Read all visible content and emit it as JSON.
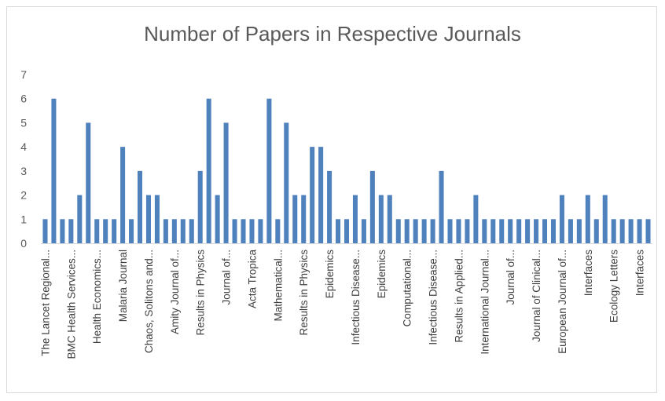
{
  "chart_data": {
    "type": "bar",
    "title": "Number of Papers in Respective Journals",
    "xlabel": "",
    "ylabel": "",
    "ylim": [
      0,
      7
    ],
    "yticks": [
      0,
      1,
      2,
      3,
      4,
      5,
      6,
      7
    ],
    "grid": false,
    "legend": "none",
    "bar_color": "#4f81bd",
    "values": [
      1,
      6,
      1,
      1,
      2,
      5,
      1,
      1,
      1,
      4,
      1,
      3,
      2,
      2,
      1,
      1,
      1,
      1,
      3,
      6,
      2,
      5,
      1,
      1,
      1,
      1,
      6,
      1,
      5,
      2,
      2,
      4,
      4,
      3,
      1,
      1,
      2,
      1,
      3,
      2,
      2,
      1,
      1,
      1,
      1,
      1,
      3,
      1,
      1,
      1,
      2,
      1,
      1,
      1,
      1,
      1,
      1,
      1,
      1,
      1,
      2,
      1,
      1,
      2,
      1,
      2,
      1,
      1,
      1,
      1,
      1
    ],
    "visible_labels": [
      {
        "index": 0,
        "text": "The Lancet Regional..."
      },
      {
        "index": 3,
        "text": "BMC Health Services..."
      },
      {
        "index": 6,
        "text": "Health Economics..."
      },
      {
        "index": 9,
        "text": "Malaria Journal"
      },
      {
        "index": 12,
        "text": "Chaos, Solitons and..."
      },
      {
        "index": 15,
        "text": "Amity Journal of..."
      },
      {
        "index": 18,
        "text": "Results in Physics"
      },
      {
        "index": 21,
        "text": "Journal of..."
      },
      {
        "index": 24,
        "text": "Acta Tropica"
      },
      {
        "index": 27,
        "text": "Mathematical..."
      },
      {
        "index": 30,
        "text": "Results in Physics"
      },
      {
        "index": 33,
        "text": "Epidemics"
      },
      {
        "index": 36,
        "text": "Infectious Disease..."
      },
      {
        "index": 39,
        "text": "Epidemics"
      },
      {
        "index": 42,
        "text": "Computational..."
      },
      {
        "index": 45,
        "text": "Infectious Disease..."
      },
      {
        "index": 48,
        "text": "Results in Applied..."
      },
      {
        "index": 51,
        "text": "International Journal..."
      },
      {
        "index": 54,
        "text": "Journal of..."
      },
      {
        "index": 57,
        "text": "Journal of Clinical..."
      },
      {
        "index": 60,
        "text": "European Journal of..."
      },
      {
        "index": 63,
        "text": "Interfaces"
      },
      {
        "index": 66,
        "text": "Ecology Letters"
      },
      {
        "index": 69,
        "text": "Interfaces"
      }
    ]
  }
}
